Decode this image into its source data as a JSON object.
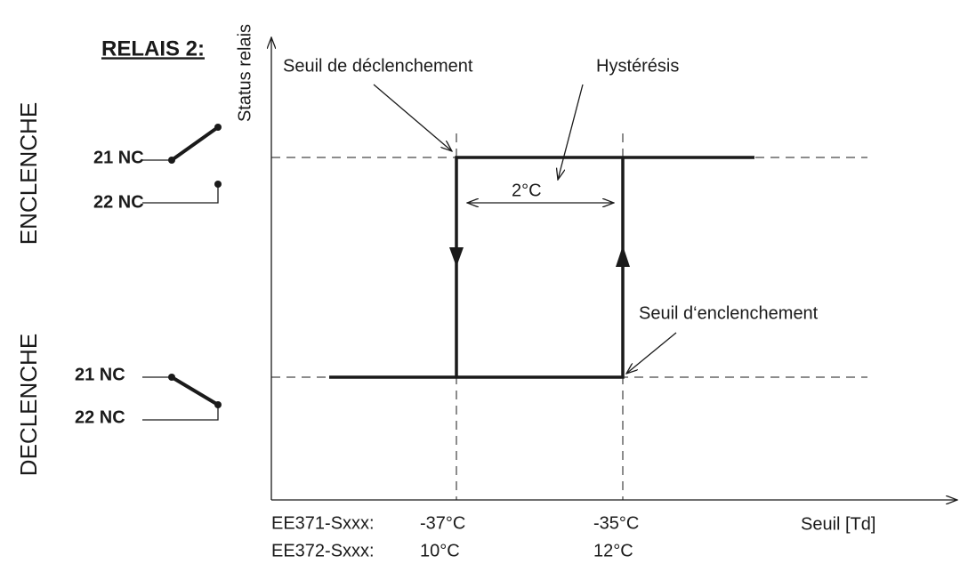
{
  "title": "RELAIS 2:",
  "states": [
    {
      "label": "ENCLENCHE",
      "contacts": [
        "21 NC",
        "22 NC"
      ]
    },
    {
      "label": "DECLENCHE",
      "contacts": [
        "21 NC",
        "22 NC"
      ]
    }
  ],
  "y_axis_label": "Status relais",
  "x_axis_label": "Seuil [Td]",
  "annotations": {
    "trip": "Seuil de déclenchement",
    "hysteresis": "Hystérésis",
    "width": "2°C",
    "engage": "Seuil d‘enclenchement"
  },
  "thresholds": [
    [
      "EE371-Sxxx:",
      "-37°C",
      "-35°C"
    ],
    [
      "EE372-Sxxx:",
      "10°C",
      "12°C"
    ]
  ]
}
